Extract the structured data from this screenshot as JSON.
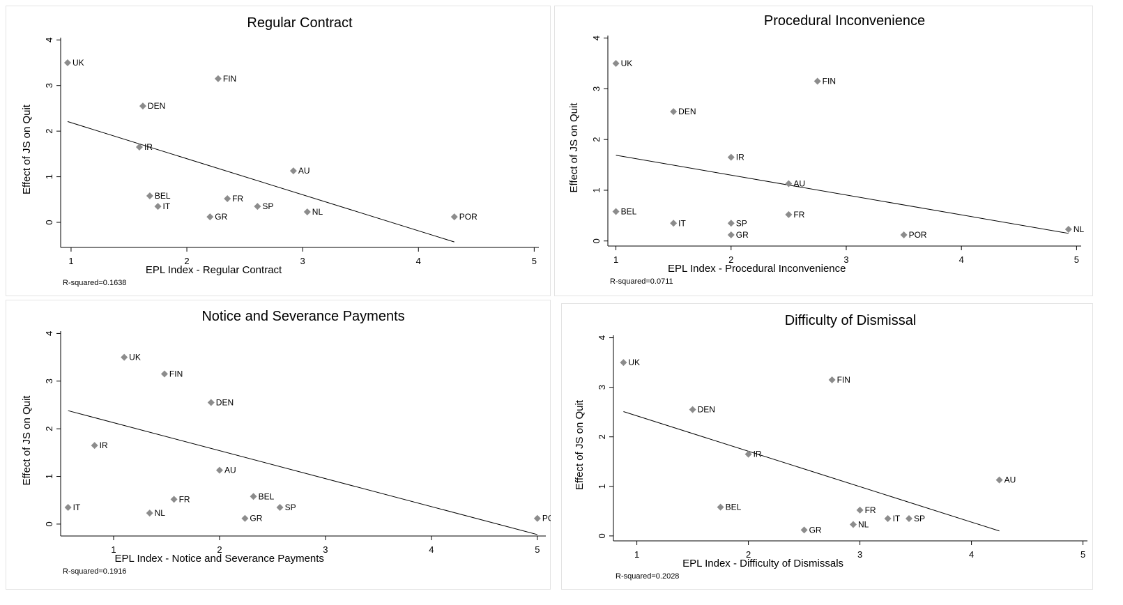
{
  "chart_data": [
    {
      "type": "scatter",
      "title": "Regular Contract",
      "xlabel": "EPL Index - Regular Contract",
      "ylabel": "Effect of JS on Quit",
      "note": "R-squared=0.1638",
      "labels": [
        "UK",
        "FIN",
        "DEN",
        "IR",
        "AU",
        "BEL",
        "FR",
        "IT",
        "SP",
        "NL",
        "GR",
        "POR"
      ],
      "x": [
        0.97,
        2.27,
        1.62,
        1.59,
        2.92,
        1.68,
        2.35,
        1.75,
        2.61,
        3.04,
        2.2,
        4.31
      ],
      "values": [
        3.5,
        3.15,
        2.55,
        1.65,
        1.13,
        0.58,
        0.52,
        0.35,
        0.35,
        0.23,
        0.12,
        0.12
      ],
      "fit": {
        "x": [
          0.97,
          4.31
        ],
        "y": [
          2.21,
          -0.43
        ]
      },
      "color": "#8c8c8c",
      "xlim": [
        0.91,
        5.04
      ],
      "ylim": [
        -0.55,
        4.05
      ],
      "xticks": [
        1,
        2,
        3,
        4,
        5
      ],
      "yticks": [
        0,
        1,
        2,
        3,
        4
      ]
    },
    {
      "type": "scatter",
      "title": "Procedural Inconvenience",
      "xlabel": "EPL Index - Procedural Inconvenience",
      "ylabel": "Effect of JS on Quit",
      "note": "R-squared=0.0711",
      "labels": [
        "UK",
        "FIN",
        "DEN",
        "IR",
        "AU",
        "BEL",
        "FR",
        "IT",
        "SP",
        "NL",
        "GR",
        "POR"
      ],
      "x": [
        1.0,
        2.75,
        1.5,
        2.0,
        2.5,
        1.0,
        2.5,
        1.5,
        2.0,
        4.93,
        2.0,
        3.5
      ],
      "values": [
        3.5,
        3.15,
        2.55,
        1.65,
        1.13,
        0.58,
        0.52,
        0.35,
        0.35,
        0.23,
        0.12,
        0.12
      ],
      "fit": {
        "x": [
          1.0,
          4.93
        ],
        "y": [
          1.69,
          0.15
        ]
      },
      "color": "#8c8c8c",
      "xlim": [
        0.93,
        5.04
      ],
      "ylim": [
        -0.1,
        4.05
      ],
      "xticks": [
        1,
        2,
        3,
        4,
        5
      ],
      "yticks": [
        0,
        1,
        2,
        3,
        4
      ]
    },
    {
      "type": "scatter",
      "title": "Notice and Severance Payments",
      "xlabel": "EPL Index - Notice and Severance Payments",
      "ylabel": "Effect of JS on Quit",
      "note": "R-squared=0.1916",
      "labels": [
        "UK",
        "FIN",
        "DEN",
        "IR",
        "AU",
        "BEL",
        "FR",
        "IT",
        "SP",
        "NL",
        "GR",
        "POR"
      ],
      "x": [
        1.1,
        1.48,
        1.92,
        0.82,
        2.0,
        2.32,
        1.57,
        0.57,
        2.57,
        1.34,
        2.24,
        5.0
      ],
      "values": [
        3.5,
        3.15,
        2.55,
        1.65,
        1.13,
        0.58,
        0.52,
        0.35,
        0.35,
        0.23,
        0.12,
        0.12
      ],
      "fit": {
        "x": [
          0.57,
          5.0
        ],
        "y": [
          2.38,
          -0.22
        ]
      },
      "color": "#8c8c8c",
      "xlim": [
        0.5,
        5.08
      ],
      "ylim": [
        -0.25,
        4.05
      ],
      "xticks": [
        1,
        2,
        3,
        4,
        5
      ],
      "yticks": [
        0,
        1,
        2,
        3,
        4
      ]
    },
    {
      "type": "scatter",
      "title": "Difficulty of Dismissal",
      "xlabel": "EPL Index - Difficulty of Dismissals",
      "ylabel": "Effect of JS on Quit",
      "note": "R-squared=0.2028",
      "labels": [
        "UK",
        "FIN",
        "DEN",
        "IR",
        "AU",
        "BEL",
        "FR",
        "IT",
        "SP",
        "NL",
        "GR"
      ],
      "x": [
        0.88,
        2.75,
        1.5,
        2.0,
        4.25,
        1.75,
        3.0,
        3.25,
        3.44,
        2.94,
        2.5
      ],
      "values": [
        3.5,
        3.15,
        2.55,
        1.65,
        1.13,
        0.58,
        0.52,
        0.35,
        0.35,
        0.23,
        0.12
      ],
      "fit": {
        "x": [
          0.88,
          4.25
        ],
        "y": [
          2.51,
          0.1
        ]
      },
      "color": "#8c8c8c",
      "xlim": [
        0.79,
        5.04
      ],
      "ylim": [
        -0.1,
        4.05
      ],
      "xticks": [
        1,
        2,
        3,
        4,
        5
      ],
      "yticks": [
        0,
        1,
        2,
        3,
        4
      ]
    }
  ]
}
